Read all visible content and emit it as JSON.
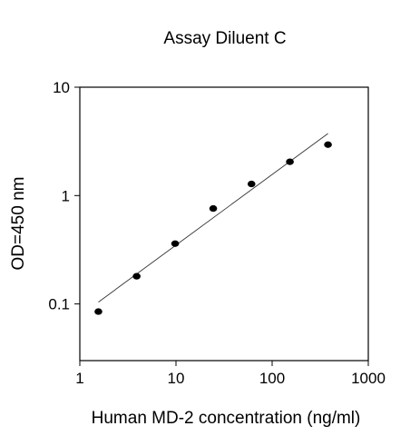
{
  "chart_data": {
    "type": "scatter",
    "title": "Assay Diluent C",
    "xlabel": "Human MD-2 concentration (ng/ml)",
    "ylabel": "OD=450 nm",
    "xscale": "log",
    "yscale": "log",
    "xlim": [
      1,
      1000
    ],
    "ylim": [
      0.03,
      10
    ],
    "xticks": [
      1,
      10,
      100,
      1000
    ],
    "xtick_labels": [
      "1",
      "10",
      "100",
      "1000"
    ],
    "yticks": [
      0.1,
      1,
      10
    ],
    "ytick_labels": [
      "0.1",
      "1",
      "10"
    ],
    "grid": false,
    "points": [
      {
        "x": 1.56,
        "y": 0.085
      },
      {
        "x": 3.9,
        "y": 0.18
      },
      {
        "x": 9.8,
        "y": 0.36
      },
      {
        "x": 24.4,
        "y": 0.76
      },
      {
        "x": 61,
        "y": 1.28
      },
      {
        "x": 153,
        "y": 2.05
      },
      {
        "x": 381,
        "y": 2.95
      }
    ],
    "fit_line": {
      "x": [
        1.56,
        381
      ],
      "y": [
        0.104,
        3.74
      ]
    },
    "colors": {
      "marker": "#000000",
      "line": "#333333",
      "axis": "#000000"
    }
  }
}
